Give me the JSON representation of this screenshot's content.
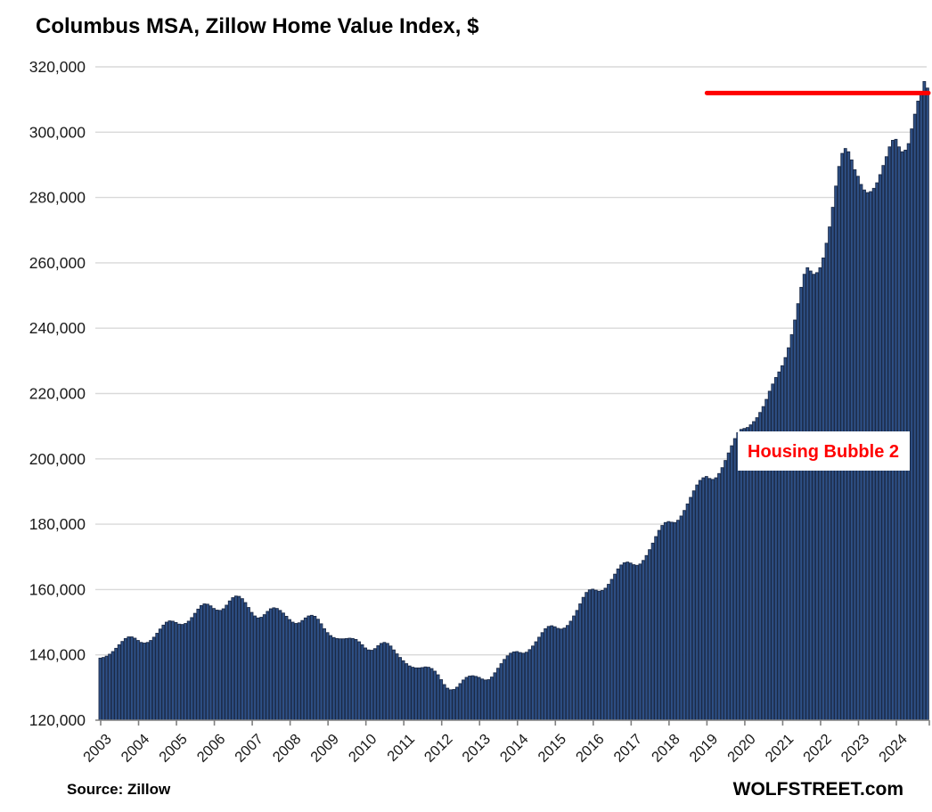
{
  "header": {
    "title": "Columbus MSA, Zillow Home Value Index, $"
  },
  "footer": {
    "source": "Source: Zillow",
    "brand": "WOLFSTREET.com"
  },
  "annotation": {
    "label": "Housing Bubble 2",
    "color": "#FF0000"
  },
  "colors": {
    "bar_fill": "#2e5086",
    "bar_stroke": "#1b2a47",
    "gridline": "#d9d9d9",
    "axis": "#808080",
    "red_line": "#ff0000",
    "tick_text": "#1a1a1a"
  },
  "chart_data": {
    "type": "bar",
    "title": "Columbus MSA, Zillow Home Value Index, $",
    "xlabel": "",
    "ylabel": "",
    "legend": "none",
    "grid": "horizontal",
    "ylim": [
      120000,
      320000
    ],
    "y_step": 20000,
    "x_tick_years": [
      2003,
      2004,
      2005,
      2006,
      2007,
      2008,
      2009,
      2010,
      2011,
      2012,
      2013,
      2014,
      2015,
      2016,
      2017,
      2018,
      2019,
      2020,
      2021,
      2022,
      2023,
      2024
    ],
    "series_name": "Zillow Home Value Index, $",
    "start_year": 2003,
    "start_month": 1,
    "frequency": "monthly",
    "red_line": {
      "value": 312000,
      "start_year": 2019
    },
    "values": [
      139000,
      139200,
      139600,
      140200,
      141000,
      142000,
      143100,
      144100,
      145000,
      145500,
      145500,
      145100,
      144400,
      143800,
      143600,
      143800,
      144400,
      145400,
      146600,
      147900,
      149100,
      150000,
      150400,
      150300,
      149900,
      149400,
      149300,
      149600,
      150300,
      151400,
      152700,
      154000,
      155100,
      155600,
      155500,
      155000,
      154200,
      153700,
      153600,
      154100,
      155200,
      156500,
      157500,
      158000,
      157900,
      157200,
      156000,
      154500,
      153000,
      151900,
      151300,
      151500,
      152300,
      153300,
      154100,
      154400,
      154200,
      153600,
      152800,
      151800,
      150800,
      150000,
      149600,
      149800,
      150500,
      151300,
      151900,
      152100,
      151800,
      150900,
      149500,
      148000,
      146800,
      145900,
      145300,
      145000,
      144900,
      144900,
      145000,
      145100,
      145000,
      144700,
      144000,
      143100,
      142100,
      141500,
      141400,
      141900,
      142800,
      143500,
      143800,
      143500,
      142700,
      141500,
      140300,
      139200,
      138200,
      137300,
      136600,
      136200,
      136000,
      136000,
      136100,
      136300,
      136200,
      135800,
      135000,
      133900,
      132400,
      130900,
      129800,
      129300,
      129400,
      130100,
      131200,
      132300,
      133100,
      133500,
      133600,
      133400,
      133100,
      132600,
      132300,
      132400,
      133200,
      134500,
      135900,
      137300,
      138600,
      139700,
      140500,
      140900,
      141000,
      140700,
      140500,
      140800,
      141600,
      142700,
      144000,
      145400,
      146800,
      148000,
      148700,
      148900,
      148600,
      148100,
      147900,
      148200,
      149000,
      150300,
      151900,
      153600,
      155600,
      157600,
      159100,
      159900,
      160100,
      159800,
      159500,
      159700,
      160400,
      161600,
      163100,
      164700,
      166300,
      167500,
      168200,
      168400,
      168100,
      167600,
      167400,
      167800,
      168900,
      170400,
      172200,
      174200,
      176200,
      178100,
      179600,
      180500,
      180800,
      180600,
      180500,
      181200,
      182500,
      184200,
      186200,
      188200,
      190200,
      192000,
      193400,
      194200,
      194600,
      194000,
      193700,
      194200,
      195500,
      197300,
      199500,
      201800,
      204000,
      206200,
      208000,
      209000,
      209300,
      209600,
      210400,
      211400,
      212600,
      214200,
      216000,
      218200,
      220700,
      222900,
      224900,
      226600,
      228500,
      231000,
      234000,
      238000,
      242500,
      247500,
      252500,
      256500,
      258500,
      257500,
      256500,
      257000,
      258500,
      261500,
      266000,
      271000,
      277000,
      283500,
      289500,
      293500,
      295000,
      294000,
      291500,
      288500,
      286500,
      284000,
      282300,
      281500,
      281800,
      282800,
      284500,
      287000,
      289800,
      292500,
      295500,
      297500,
      297800,
      295500,
      294000,
      294500,
      296500,
      301000,
      305500,
      309500,
      312500,
      315500,
      313500
    ]
  }
}
